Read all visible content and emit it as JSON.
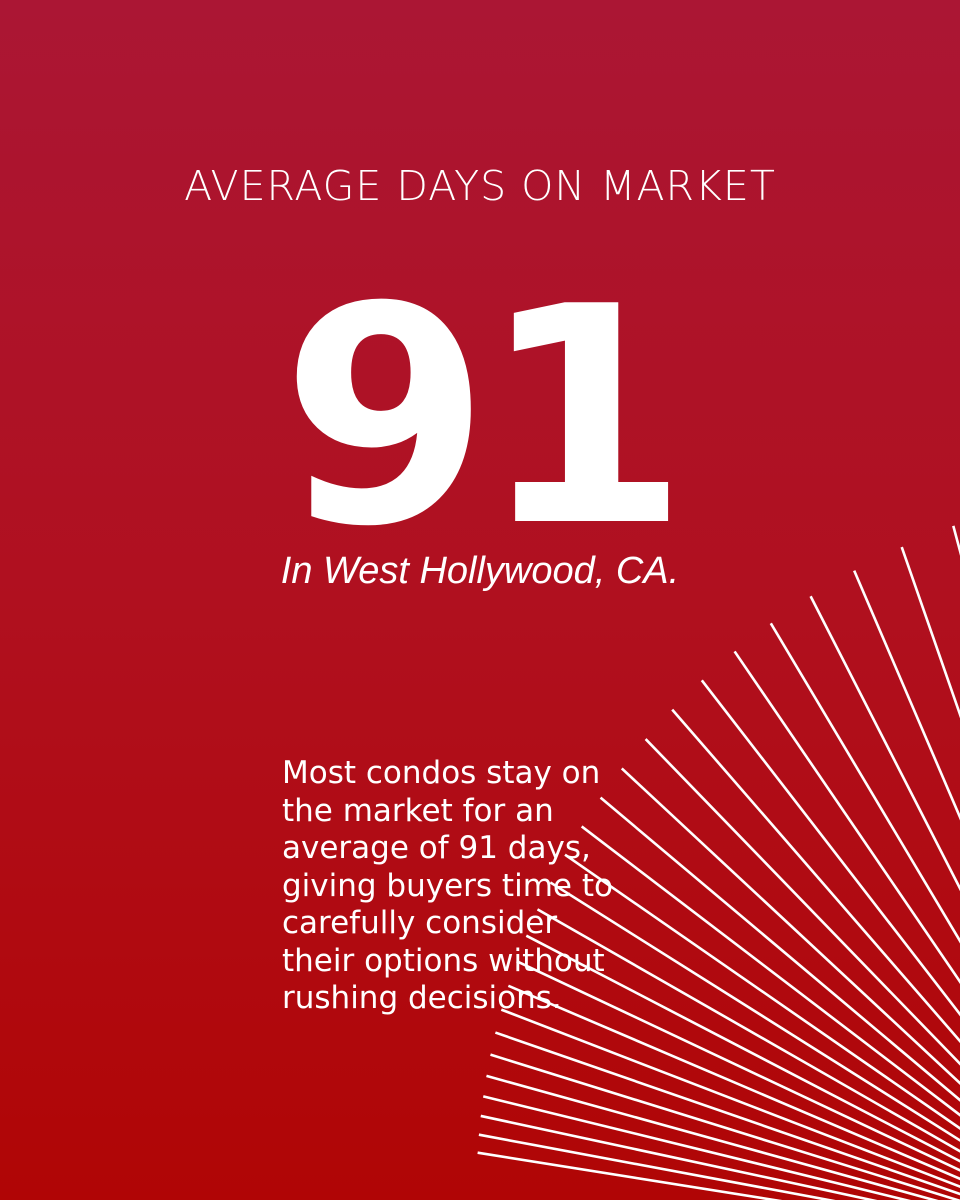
{
  "header": {
    "title": "AVERAGE DAYS ON MARKET"
  },
  "stat": {
    "value": "91",
    "location": "In West Hollywood, CA."
  },
  "body": {
    "lines": [
      "Most condos stay on",
      "the market for an",
      "average of 91 days,",
      "giving buyers time to",
      "carefully consider",
      "their options without",
      "rushing decisions."
    ]
  }
}
